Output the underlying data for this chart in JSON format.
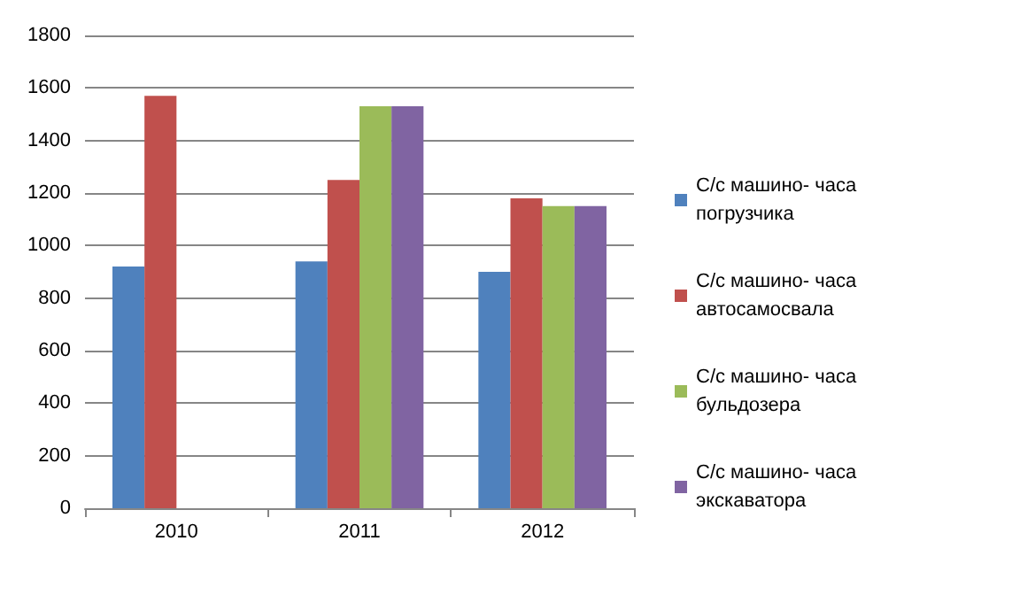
{
  "chart_data": {
    "type": "bar",
    "categories": [
      "2010",
      "2011",
      "2012"
    ],
    "series": [
      {
        "name": "С/с машино- часа погрузчика",
        "color": "#4f81bd",
        "values": [
          920,
          940,
          900
        ]
      },
      {
        "name": "С/с машино- часа автосамосвала",
        "color": "#c0504d",
        "values": [
          1570,
          1250,
          1180
        ]
      },
      {
        "name": "С/с машино- часа бульдозера",
        "color": "#9bbb59",
        "values": [
          null,
          1530,
          1150
        ]
      },
      {
        "name": "С/с машино- часа экскаватора",
        "color": "#8064a2",
        "values": [
          null,
          1530,
          1150
        ]
      }
    ],
    "ylim": [
      0,
      1800
    ],
    "yticks": [
      0,
      200,
      400,
      600,
      800,
      1000,
      1200,
      1400,
      1600,
      1800
    ],
    "grid": "y",
    "legend": "right"
  }
}
